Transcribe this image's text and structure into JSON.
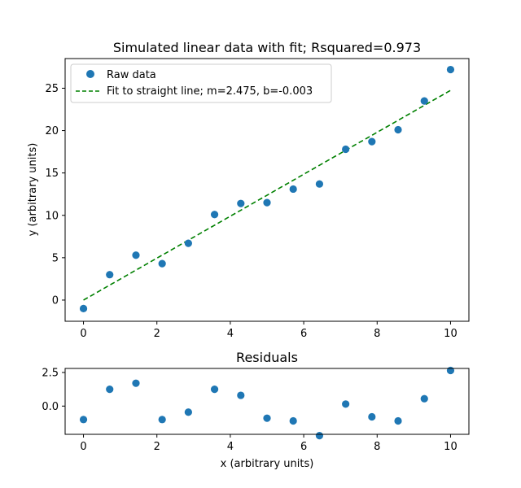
{
  "chart_data": [
    {
      "type": "scatter",
      "title": "Simulated linear data with fit; Rsquared=0.973",
      "xlabel": "",
      "ylabel": "y (arbitrary units)",
      "xlim": [
        -0.5,
        10.5
      ],
      "ylim": [
        -2.5,
        28.5
      ],
      "xticks": [
        0,
        2,
        4,
        6,
        8,
        10
      ],
      "yticks": [
        0,
        5,
        10,
        15,
        20,
        25
      ],
      "grid": false,
      "legend_position": "top-left",
      "series": [
        {
          "name": "Raw data",
          "kind": "scatter",
          "color": "#1f77b4",
          "x": [
            0,
            0.714,
            1.429,
            2.143,
            2.857,
            3.571,
            4.286,
            5.0,
            5.714,
            6.429,
            7.143,
            7.857,
            8.571,
            9.286,
            10.0
          ],
          "y": [
            -1.0,
            3.0,
            5.3,
            4.3,
            6.7,
            10.1,
            11.4,
            11.5,
            13.1,
            13.7,
            17.8,
            18.7,
            20.1,
            23.5,
            27.2
          ]
        },
        {
          "name": "Fit to straight line; m=2.475, b=-0.003",
          "kind": "line",
          "style": "dashed",
          "color": "#008000",
          "x": [
            0,
            10
          ],
          "y": [
            -0.003,
            24.747
          ]
        }
      ]
    },
    {
      "type": "scatter",
      "title": "Residuals",
      "xlabel": "x (arbitrary units)",
      "ylabel": "",
      "xlim": [
        -0.5,
        10.5
      ],
      "ylim": [
        -2.1,
        2.8
      ],
      "xticks": [
        0,
        2,
        4,
        6,
        8,
        10
      ],
      "yticks": [
        0.0,
        2.5
      ],
      "ytick_labels": [
        "0.0",
        "2.5"
      ],
      "grid": false,
      "series": [
        {
          "kind": "scatter",
          "color": "#1f77b4",
          "x": [
            0,
            0.714,
            1.429,
            2.143,
            2.857,
            3.571,
            4.286,
            5.0,
            5.714,
            6.429,
            7.143,
            7.857,
            8.571,
            9.286,
            10.0
          ],
          "y": [
            -1.0,
            1.25,
            1.7,
            -1.0,
            -0.45,
            1.25,
            0.8,
            -0.9,
            -1.1,
            -2.2,
            0.15,
            -0.8,
            -1.1,
            0.55,
            2.65
          ]
        }
      ]
    }
  ]
}
